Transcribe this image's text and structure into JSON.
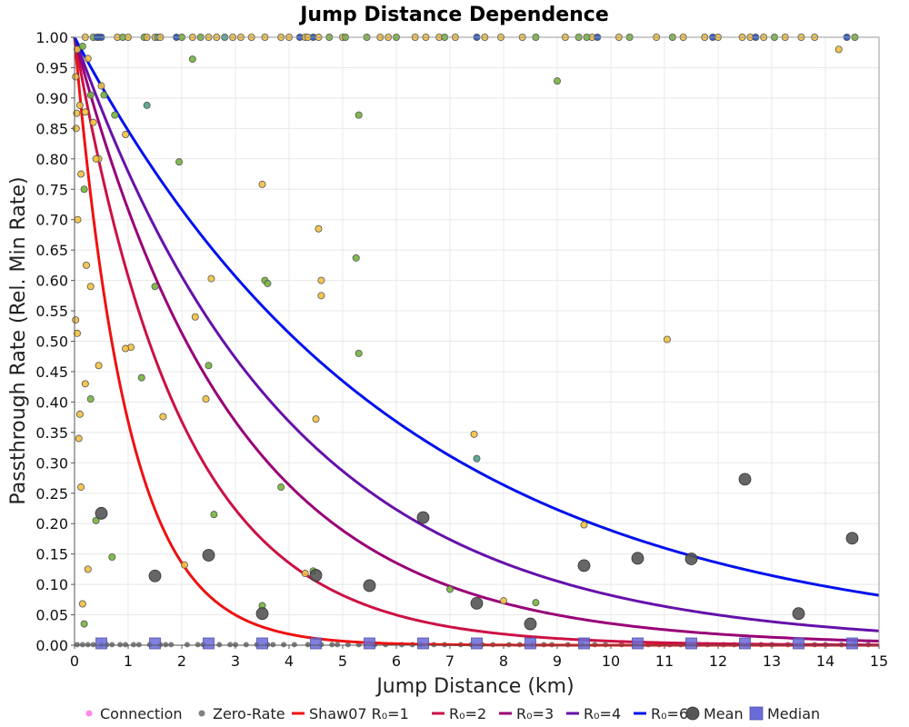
{
  "chart_data": {
    "type": "scatter",
    "title": "Jump Distance Dependence",
    "xlabel": "Jump Distance (km)",
    "ylabel": "Passthrough Rate (Rel. Min Rate)",
    "xlim": [
      0,
      15
    ],
    "ylim": [
      0,
      1
    ],
    "x_ticks": [
      "0",
      "1",
      "2",
      "3",
      "4",
      "5",
      "6",
      "7",
      "8",
      "9",
      "10",
      "11",
      "12",
      "13",
      "14",
      "15"
    ],
    "y_ticks": [
      "0.00",
      "0.05",
      "0.10",
      "0.15",
      "0.20",
      "0.25",
      "0.30",
      "0.35",
      "0.40",
      "0.45",
      "0.50",
      "0.55",
      "0.60",
      "0.65",
      "0.70",
      "0.75",
      "0.80",
      "0.85",
      "0.90",
      "0.95",
      "1.00"
    ],
    "grid": true,
    "legend_position": "bottom",
    "legend": [
      "Connection",
      "Zero-Rate",
      "Shaw07 R₀=1",
      "R₀=2",
      "R₀=3",
      "R₀=4",
      "R₀=6",
      "Mean",
      "Median"
    ],
    "colors": {
      "connection": "#ff88ee",
      "zero_rate": "#808080",
      "curve_r1": "#ee1111",
      "curve_r2": "#cc1144",
      "curve_r3": "#990077",
      "curve_r4": "#6611aa",
      "curve_r6": "#0011ee",
      "mean": "#555555",
      "median": "#6a6ad8",
      "point_yellow": "#f2c040",
      "point_green": "#74b33c",
      "point_teal": "#4e9f8a",
      "point_blue": "#2050c0"
    },
    "curves": [
      {
        "name": "Shaw07 R₀=1",
        "R0": 1,
        "color_key": "curve_r1"
      },
      {
        "name": "R₀=2",
        "R0": 2,
        "color_key": "curve_r2"
      },
      {
        "name": "R₀=3",
        "R0": 3,
        "color_key": "curve_r3"
      },
      {
        "name": "R₀=4",
        "R0": 4,
        "color_key": "curve_r4"
      },
      {
        "name": "R₀=6",
        "R0": 6,
        "color_key": "curve_r6"
      }
    ],
    "mean": {
      "x": [
        0.5,
        1.5,
        2.5,
        3.5,
        4.5,
        5.5,
        6.5,
        7.5,
        8.5,
        9.5,
        10.5,
        11.5,
        12.5,
        13.5,
        14.5
      ],
      "y": [
        0.217,
        0.114,
        0.148,
        0.052,
        0.115,
        0.098,
        0.21,
        0.069,
        0.035,
        0.131,
        0.143,
        0.142,
        0.273,
        0.052,
        0.176
      ]
    },
    "median": {
      "x": [
        0.5,
        1.5,
        2.5,
        3.5,
        4.5,
        5.5,
        6.5,
        7.5,
        8.5,
        9.5,
        10.5,
        11.5,
        12.5,
        13.5,
        14.5
      ],
      "y": [
        0.003,
        0.003,
        0.003,
        0.003,
        0.003,
        0.003,
        0.003,
        0.003,
        0.003,
        0.003,
        0.003,
        0.003,
        0.003,
        0.003,
        0.003
      ]
    },
    "connections": {
      "x": [
        0.05,
        0.15,
        0.25,
        0.35,
        0.45,
        0.3,
        0.55,
        0.75,
        0.95,
        1.05,
        0.1,
        0.2,
        0.45,
        0.7,
        0.12,
        0.22,
        0.3,
        0.1,
        0.2,
        0.4,
        0.3,
        0.5,
        0.18,
        0.95,
        1.35,
        1.5,
        1.65,
        1.25,
        1.95,
        2.2,
        2.25,
        2.45,
        2.5,
        2.55,
        2.6,
        2.05,
        3.5,
        3.55,
        3.6,
        3.85,
        4.45,
        4.5,
        4.55,
        4.6,
        4.6,
        5.25,
        5.3,
        5.3,
        4.3,
        7.0,
        7.45,
        7.5,
        8.0,
        8.6,
        9.0,
        9.5,
        11.05,
        0.02,
        0.04,
        0.03,
        0.06,
        0.02,
        0.05,
        0.12,
        0.18,
        0.25,
        0.08,
        0.15,
        0.4,
        3.5,
        14.25
      ],
      "y": [
        0.98,
        0.985,
        0.965,
        0.86,
        0.8,
        0.905,
        0.905,
        0.872,
        0.84,
        0.49,
        0.888,
        0.877,
        0.46,
        0.145,
        0.775,
        0.625,
        0.59,
        0.38,
        0.43,
        0.8,
        0.405,
        0.92,
        0.75,
        0.488,
        0.888,
        0.59,
        0.376,
        0.44,
        0.795,
        0.964,
        0.54,
        0.405,
        0.46,
        0.603,
        0.215,
        0.132,
        0.758,
        0.6,
        0.595,
        0.26,
        0.122,
        0.372,
        0.685,
        0.6,
        0.575,
        0.637,
        0.872,
        0.48,
        0.118,
        0.092,
        0.347,
        0.307,
        0.073,
        0.07,
        0.928,
        0.198,
        0.503,
        0.935,
        0.875,
        0.85,
        0.7,
        0.535,
        0.513,
        0.26,
        0.035,
        0.125,
        0.34,
        0.068,
        0.205,
        0.065,
        0.98
      ],
      "c": [
        "y",
        "g",
        "y",
        "y",
        "y",
        "g",
        "g",
        "g",
        "y",
        "y",
        "y",
        "y",
        "y",
        "g",
        "y",
        "y",
        "y",
        "y",
        "y",
        "y",
        "g",
        "y",
        "g",
        "y",
        "t",
        "g",
        "y",
        "g",
        "g",
        "g",
        "y",
        "y",
        "g",
        "y",
        "g",
        "y",
        "y",
        "g",
        "g",
        "g",
        "g",
        "y",
        "y",
        "y",
        "y",
        "g",
        "g",
        "g",
        "y",
        "g",
        "y",
        "t",
        "y",
        "g",
        "g",
        "y",
        "y",
        "y",
        "y",
        "y",
        "y",
        "y",
        "y",
        "y",
        "g",
        "y",
        "y",
        "y",
        "g",
        "g",
        "y"
      ]
    },
    "top_row_x": [
      0.2,
      0.35,
      0.45,
      0.5,
      0.8,
      0.9,
      1.0,
      1.3,
      1.5,
      1.55,
      1.6,
      1.9,
      2.0,
      2.2,
      2.35,
      2.5,
      2.65,
      2.8,
      3.1,
      3.3,
      3.55,
      4.0,
      4.2,
      4.3,
      4.45,
      4.55,
      4.75,
      5.0,
      5.45,
      5.7,
      5.85,
      6.0,
      6.35,
      6.8,
      6.9,
      7.1,
      7.5,
      7.65,
      8.35,
      8.6,
      9.15,
      9.4,
      9.65,
      9.75,
      10.15,
      10.35,
      10.85,
      11.15,
      11.75,
      11.9,
      12.0,
      12.45,
      12.6,
      12.7,
      12.85,
      13.05,
      13.25,
      13.8,
      14.4,
      14.55,
      0.42,
      1.35,
      2.95,
      3.85,
      4.35,
      5.05,
      6.55,
      7.95,
      9.55,
      11.35,
      13.55
    ],
    "top_row_c": [
      "y",
      "g",
      "y",
      "b",
      "y",
      "g",
      "y",
      "g",
      "y",
      "t",
      "y",
      "b",
      "g",
      "y",
      "g",
      "y",
      "y",
      "t",
      "y",
      "y",
      "y",
      "y",
      "b",
      "y",
      "b",
      "y",
      "g",
      "y",
      "g",
      "y",
      "y",
      "g",
      "y",
      "y",
      "g",
      "y",
      "b",
      "y",
      "y",
      "g",
      "y",
      "g",
      "y",
      "b",
      "y",
      "g",
      "y",
      "g",
      "y",
      "b",
      "y",
      "y",
      "y",
      "b",
      "y",
      "g",
      "y",
      "y",
      "b",
      "g",
      "b",
      "y",
      "y",
      "y",
      "y",
      "g",
      "y",
      "y",
      "g",
      "y",
      "y"
    ],
    "zero_rate_x": [
      0.05,
      0.15,
      0.25,
      0.35,
      0.5,
      0.6,
      0.7,
      0.85,
      0.95,
      1.1,
      1.2,
      1.4,
      1.6,
      1.7,
      1.8,
      2.1,
      2.3,
      2.4,
      2.7,
      2.9,
      3.0,
      3.2,
      3.4,
      3.6,
      3.7,
      3.9,
      4.1,
      4.35,
      4.6,
      4.8,
      4.9,
      5.1,
      5.3,
      5.6,
      5.8,
      6.1,
      6.3,
      6.45,
      6.7,
      6.9,
      7.2,
      7.4,
      7.6,
      7.8,
      8.1,
      8.3,
      8.55,
      8.75,
      8.9,
      9.2,
      9.45,
      9.7,
      9.9,
      10.2,
      10.45,
      10.7,
      10.9,
      11.1,
      11.3,
      11.6,
      11.8,
      12.1,
      12.3,
      12.55,
      12.8,
      13.0,
      13.3,
      13.55,
      13.8,
      14.0,
      14.3,
      14.55,
      14.8
    ]
  }
}
